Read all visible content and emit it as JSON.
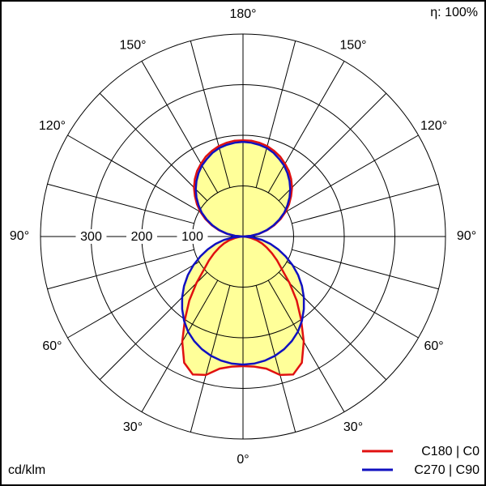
{
  "chart_data": {
    "type": "polar",
    "annotation": "η: 100%",
    "unit_label": "cd/klm",
    "angles": [
      0,
      5,
      10,
      15,
      20,
      25,
      30,
      35,
      40,
      45,
      50,
      55,
      60,
      65,
      70,
      75,
      80,
      85,
      90,
      95,
      100,
      105,
      110,
      115,
      120,
      125,
      130,
      135,
      140,
      145,
      150,
      155,
      160,
      165,
      170,
      175,
      180
    ],
    "series": [
      {
        "name": "C180 | C0",
        "color": "#e01010",
        "values": [
          256,
          258,
          265,
          283,
          290,
          275,
          240,
          200,
          165,
          130,
          100,
          82,
          66,
          52,
          40,
          28,
          15,
          7,
          0,
          16,
          33,
          50,
          66,
          82,
          97,
          111,
          124,
          137,
          148,
          158,
          166,
          174,
          180,
          185,
          188,
          190,
          190
        ]
      },
      {
        "name": "C270 | C90",
        "color": "#1010c0",
        "values": [
          253,
          252,
          249,
          244,
          237,
          228,
          217,
          203,
          187,
          170,
          152,
          133,
          113,
          93,
          74,
          56,
          38,
          19,
          0,
          16,
          32,
          48,
          64,
          79,
          94,
          107,
          120,
          132,
          143,
          153,
          162,
          169,
          176,
          181,
          184,
          186,
          187
        ]
      }
    ],
    "fill_color": "#ffff99",
    "rlim": [
      0,
      400
    ],
    "rticks": [
      100,
      200,
      300
    ],
    "angle_ticks": [
      {
        "value": 0,
        "label": "0°"
      },
      {
        "value": 30,
        "label": "30°"
      },
      {
        "value": 60,
        "label": "60°"
      },
      {
        "value": 90,
        "label": "90°"
      },
      {
        "value": 120,
        "label": "120°"
      },
      {
        "value": 150,
        "label": "150°"
      },
      {
        "value": 180,
        "label": "180°"
      }
    ]
  }
}
